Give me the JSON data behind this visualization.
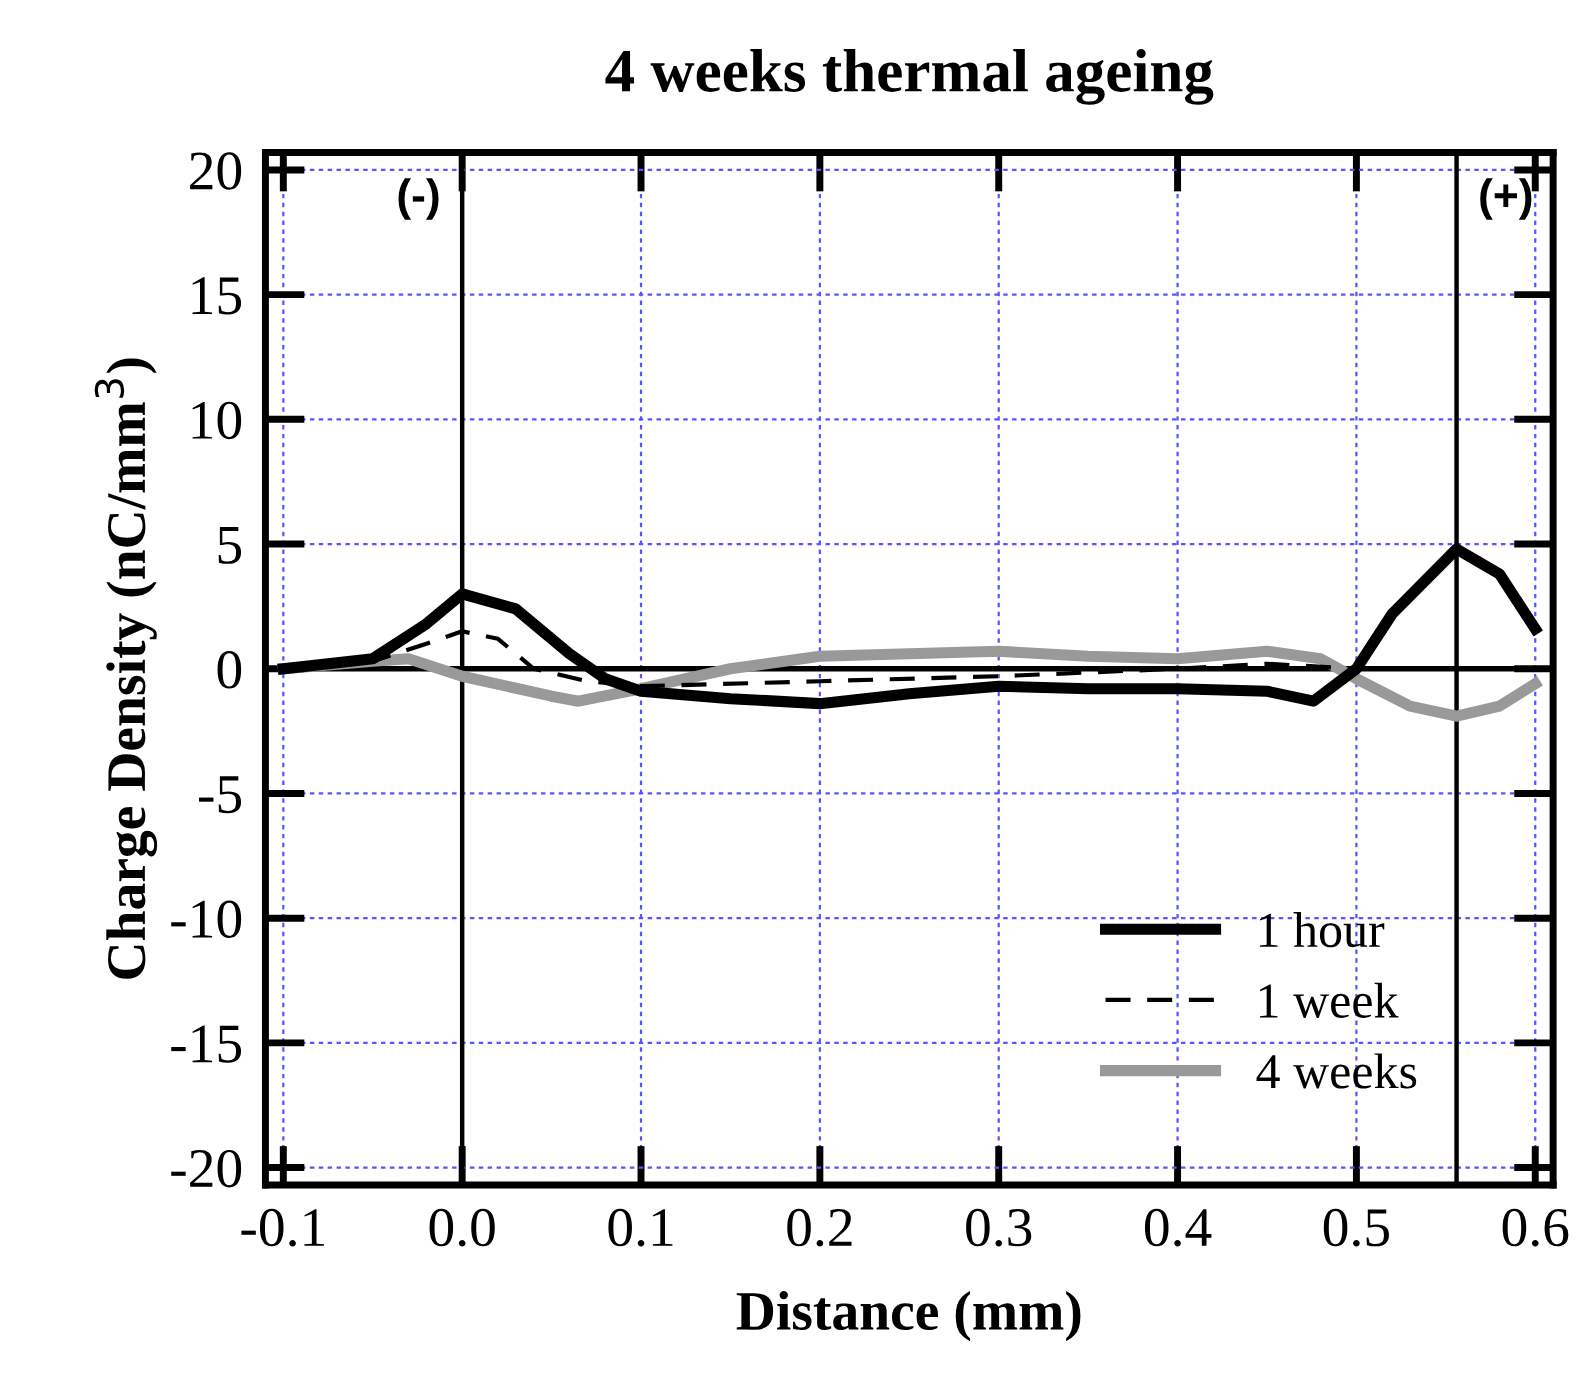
{
  "chart_data": {
    "type": "line",
    "title": "4 weeks thermal ageing",
    "xlabel": "Distance (mm)",
    "ylabel": "Charge Density (nC/mm$^{3}$)",
    "xlim": [
      -0.11,
      0.61
    ],
    "ylim": [
      -20.7,
      20.7
    ],
    "xticks": [
      {
        "value": -0.1,
        "label": "-0.1"
      },
      {
        "value": 0.0,
        "label": "0.0"
      },
      {
        "value": 0.1,
        "label": "0.1"
      },
      {
        "value": 0.2,
        "label": "0.2"
      },
      {
        "value": 0.3,
        "label": "0.3"
      },
      {
        "value": 0.4,
        "label": "0.4"
      },
      {
        "value": 0.5,
        "label": "0.5"
      },
      {
        "value": 0.6,
        "label": "0.6"
      }
    ],
    "yticks": [
      -20,
      -15,
      -10,
      -5,
      0,
      5,
      10,
      15,
      20
    ],
    "grid": true,
    "legend": "bottom right",
    "ref_lines": [
      {
        "axis": "x",
        "value": 0,
        "label": "(-)"
      },
      {
        "axis": "x",
        "value": 0.556,
        "label": "(+)"
      },
      {
        "axis": "y",
        "value": 0
      }
    ],
    "series": [
      {
        "name": "1 hour",
        "color": "#000000",
        "line_style": "solid",
        "x": [
          -0.1,
          -0.05,
          -0.02,
          0.0,
          0.03,
          0.06,
          0.08,
          0.1,
          0.15,
          0.2,
          0.25,
          0.3,
          0.35,
          0.4,
          0.45,
          0.476,
          0.5,
          0.52,
          0.556,
          0.58,
          0.6
        ],
        "values": [
          0,
          0.4,
          1.8,
          3.0,
          2.4,
          0.6,
          -0.4,
          -0.9,
          -1.2,
          -1.4,
          -1.0,
          -0.7,
          -0.8,
          -0.8,
          -0.9,
          -1.3,
          0,
          2.2,
          4.8,
          3.8,
          1.6
        ]
      },
      {
        "name": "1 week",
        "color": "#000000",
        "line_style": "dashed",
        "x": [
          -0.1,
          -0.05,
          -0.02,
          0.0,
          0.02,
          0.04,
          0.07,
          0.1,
          0.2,
          0.3,
          0.4,
          0.45,
          0.5,
          0.55,
          0.6
        ],
        "values": [
          0,
          0.3,
          1.0,
          1.5,
          1.2,
          0,
          -0.5,
          -0.7,
          -0.5,
          -0.3,
          0.0,
          0.2,
          0,
          0,
          0
        ]
      },
      {
        "name": "4 weeks",
        "color": "#999999",
        "line_style": "solid",
        "x": [
          -0.1,
          -0.05,
          -0.03,
          0.0,
          0.05,
          0.065,
          0.1,
          0.15,
          0.2,
          0.25,
          0.3,
          0.35,
          0.4,
          0.45,
          0.48,
          0.5,
          0.53,
          0.556,
          0.58,
          0.6
        ],
        "values": [
          0,
          0.3,
          0.4,
          -0.3,
          -1.1,
          -1.3,
          -0.8,
          0,
          0.5,
          0.6,
          0.7,
          0.5,
          0.4,
          0.7,
          0.4,
          -0.4,
          -1.5,
          -1.9,
          -1.5,
          -0.6
        ]
      }
    ]
  }
}
